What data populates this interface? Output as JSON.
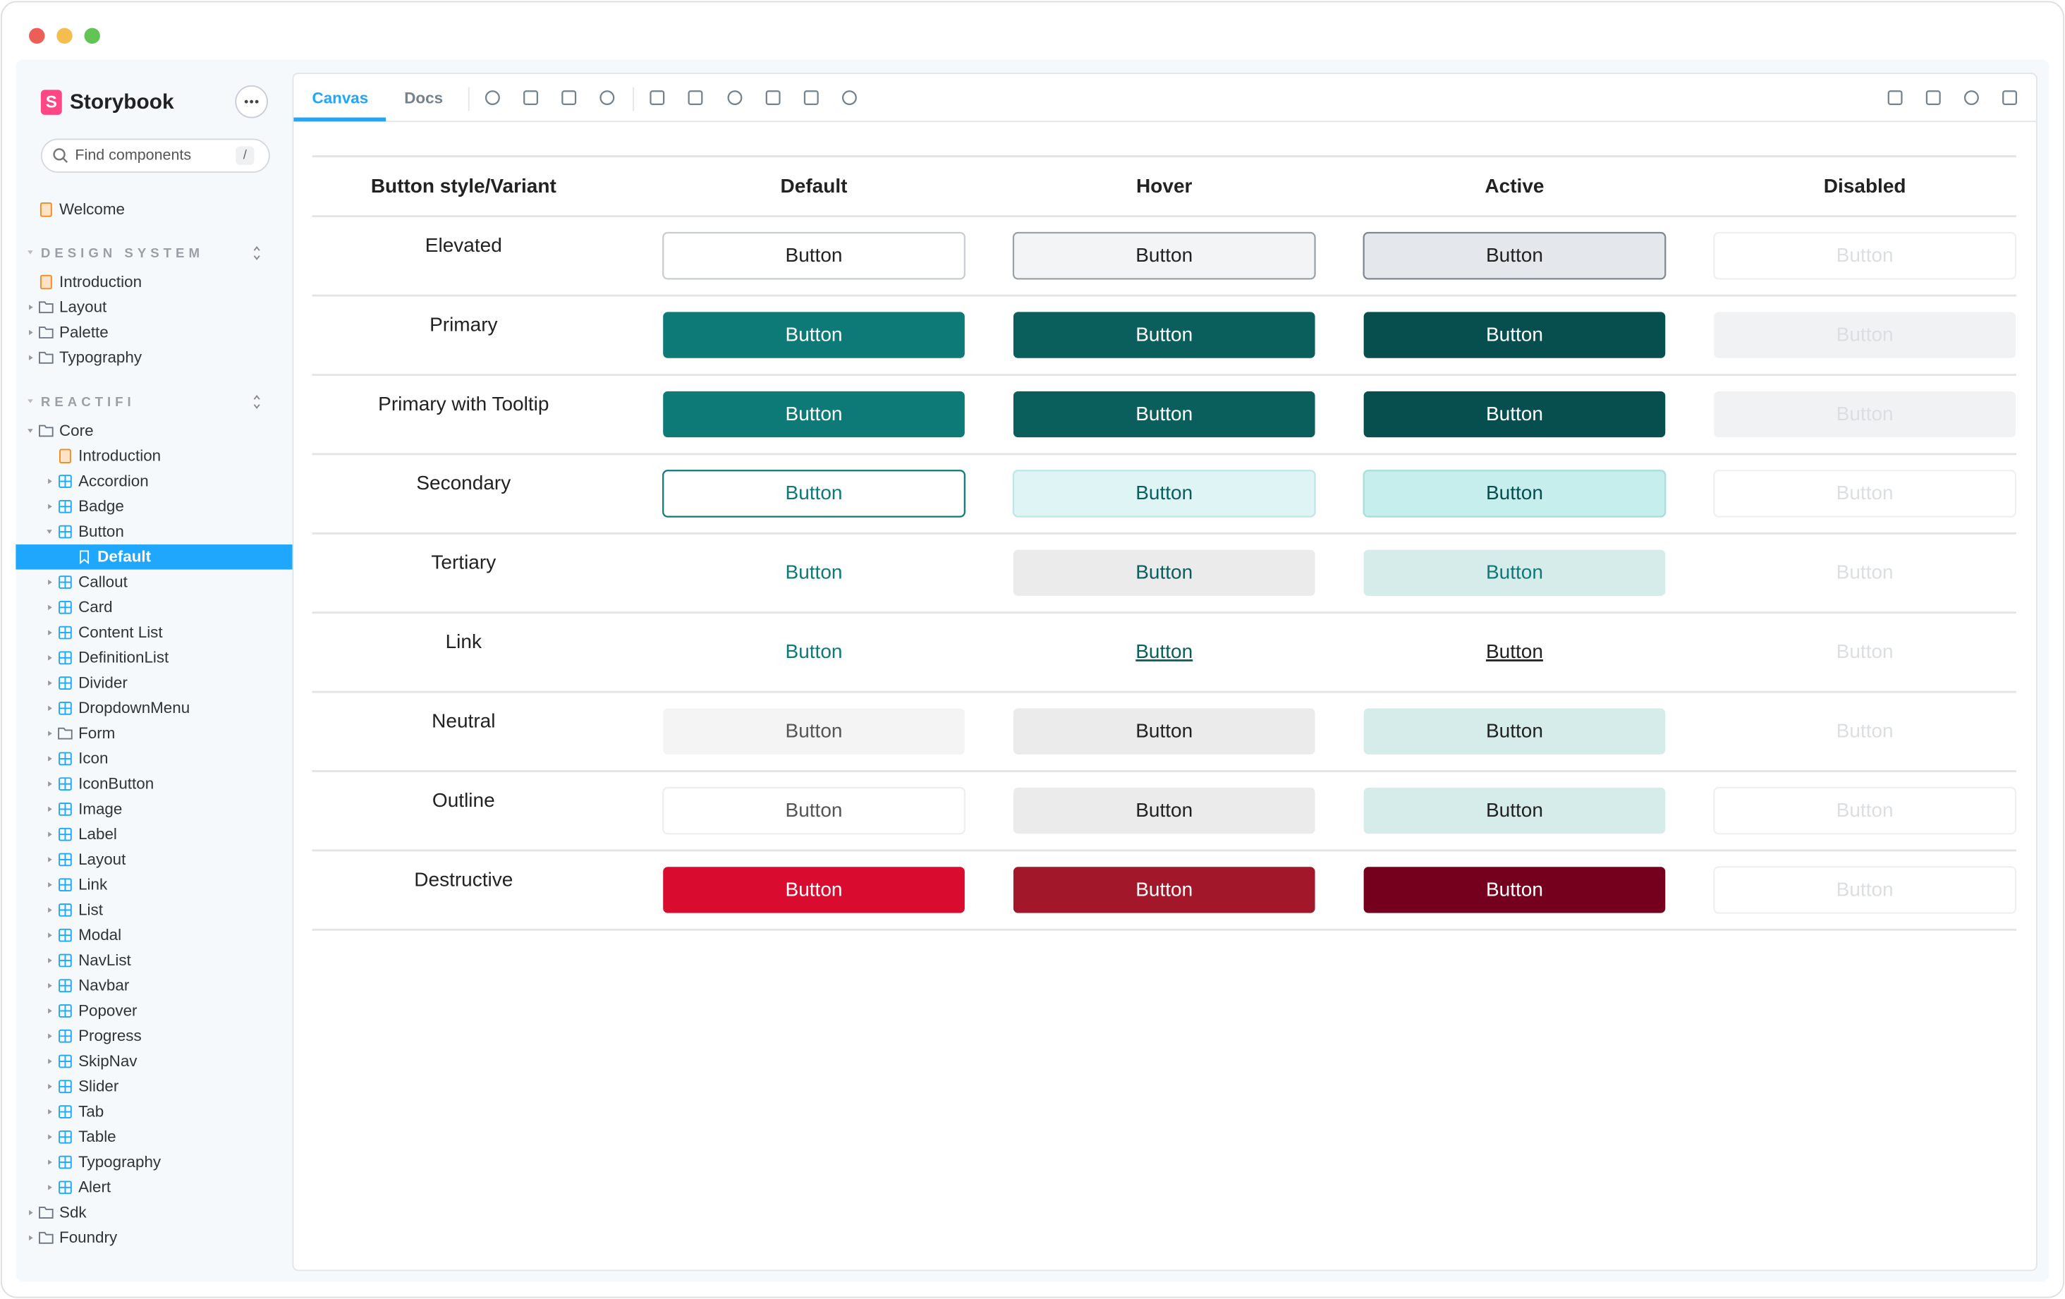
{
  "sidebar": {
    "title": "Storybook",
    "search_placeholder": "Find components",
    "search_shortcut": "/",
    "items": [
      {
        "label": "Welcome"
      }
    ],
    "sections": [
      {
        "title": "DESIGN SYSTEM",
        "items": [
          {
            "label": "Introduction"
          },
          {
            "label": "Layout"
          },
          {
            "label": "Palette"
          },
          {
            "label": "Typography"
          }
        ]
      },
      {
        "title": "REACTIFI",
        "items": [
          {
            "label": "Core",
            "items": [
              {
                "label": "Introduction"
              },
              {
                "label": "Accordion"
              },
              {
                "label": "Badge"
              },
              {
                "label": "Button",
                "items": [
                  {
                    "label": "Default"
                  }
                ]
              },
              {
                "label": "Callout"
              },
              {
                "label": "Card"
              },
              {
                "label": "Content List"
              },
              {
                "label": "DefinitionList"
              },
              {
                "label": "Divider"
              },
              {
                "label": "DropdownMenu"
              },
              {
                "label": "Form"
              },
              {
                "label": "Icon"
              },
              {
                "label": "IconButton"
              },
              {
                "label": "Image"
              },
              {
                "label": "Label"
              },
              {
                "label": "Layout"
              },
              {
                "label": "Link"
              },
              {
                "label": "List"
              },
              {
                "label": "Modal"
              },
              {
                "label": "NavList"
              },
              {
                "label": "Navbar"
              },
              {
                "label": "Popover"
              },
              {
                "label": "Progress"
              },
              {
                "label": "SkipNav"
              },
              {
                "label": "Slider"
              },
              {
                "label": "Tab"
              },
              {
                "label": "Table"
              },
              {
                "label": "Typography"
              },
              {
                "label": "Alert"
              }
            ]
          },
          {
            "label": "Sdk"
          },
          {
            "label": "Foundry"
          }
        ]
      }
    ]
  },
  "toolbar": {
    "tabs": [
      "Canvas",
      "Docs"
    ]
  },
  "table": {
    "headers": [
      "Button style/Variant",
      "Default",
      "Hover",
      "Active",
      "Disabled"
    ],
    "rows": [
      {
        "label": "Elevated",
        "cells": [
          "Button",
          "Button",
          "Button",
          "Button"
        ]
      },
      {
        "label": "Primary",
        "cells": [
          "Button",
          "Button",
          "Button",
          "Button"
        ]
      },
      {
        "label": "Primary with Tooltip",
        "cells": [
          "Button",
          "Button",
          "Button",
          "Button"
        ]
      },
      {
        "label": "Secondary",
        "cells": [
          "Button",
          "Button",
          "Button",
          "Button"
        ]
      },
      {
        "label": "Tertiary",
        "cells": [
          "Button",
          "Button",
          "Button",
          "Button"
        ]
      },
      {
        "label": "Link",
        "cells": [
          "Button",
          "Button",
          "Button",
          "Button"
        ]
      },
      {
        "label": "Neutral",
        "cells": [
          "Button",
          "Button",
          "Button",
          "Button"
        ]
      },
      {
        "label": "Outline",
        "cells": [
          "Button",
          "Button",
          "Button",
          "Button"
        ]
      },
      {
        "label": "Destructive",
        "cells": [
          "Button",
          "Button",
          "Button",
          "Button"
        ]
      }
    ]
  }
}
